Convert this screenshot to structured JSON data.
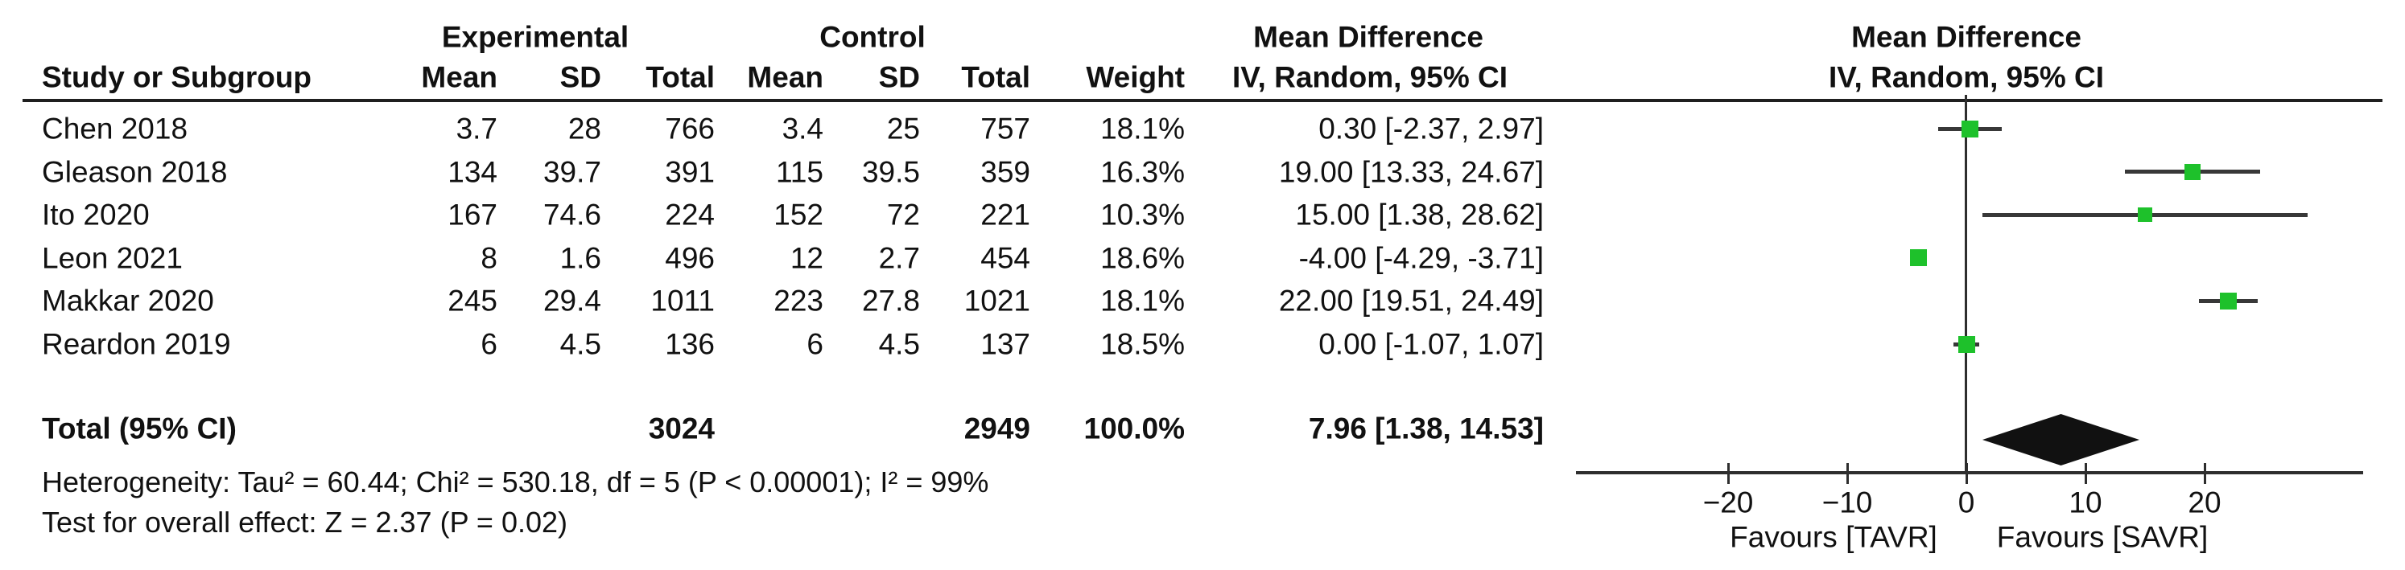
{
  "table": {
    "header": {
      "study": "Study or Subgroup",
      "experimental": "Experimental",
      "control": "Control",
      "mean": "Mean",
      "sd": "SD",
      "total": "Total",
      "weight": "Weight",
      "effect_line1": "Mean Difference",
      "effect_line2": "IV, Random, 95% CI"
    },
    "rows": [
      {
        "study": "Chen 2018",
        "exp_mean": "3.7",
        "exp_sd": "28",
        "exp_total": "766",
        "ctrl_mean": "3.4",
        "ctrl_sd": "25",
        "ctrl_total": "757",
        "weight": "18.1%",
        "ci_text": "0.30 [-2.37, 2.97]"
      },
      {
        "study": "Gleason 2018",
        "exp_mean": "134",
        "exp_sd": "39.7",
        "exp_total": "391",
        "ctrl_mean": "115",
        "ctrl_sd": "39.5",
        "ctrl_total": "359",
        "weight": "16.3%",
        "ci_text": "19.00 [13.33, 24.67]"
      },
      {
        "study": "Ito 2020",
        "exp_mean": "167",
        "exp_sd": "74.6",
        "exp_total": "224",
        "ctrl_mean": "152",
        "ctrl_sd": "72",
        "ctrl_total": "221",
        "weight": "10.3%",
        "ci_text": "15.00 [1.38, 28.62]"
      },
      {
        "study": "Leon 2021",
        "exp_mean": "8",
        "exp_sd": "1.6",
        "exp_total": "496",
        "ctrl_mean": "12",
        "ctrl_sd": "2.7",
        "ctrl_total": "454",
        "weight": "18.6%",
        "ci_text": "-4.00 [-4.29, -3.71]"
      },
      {
        "study": "Makkar 2020",
        "exp_mean": "245",
        "exp_sd": "29.4",
        "exp_total": "1011",
        "ctrl_mean": "223",
        "ctrl_sd": "27.8",
        "ctrl_total": "1021",
        "weight": "18.1%",
        "ci_text": "22.00 [19.51, 24.49]"
      },
      {
        "study": "Reardon 2019",
        "exp_mean": "6",
        "exp_sd": "4.5",
        "exp_total": "136",
        "ctrl_mean": "6",
        "ctrl_sd": "4.5",
        "ctrl_total": "137",
        "weight": "18.5%",
        "ci_text": "0.00 [-1.07, 1.07]"
      }
    ],
    "total_row": {
      "label": "Total (95% CI)",
      "exp_total": "3024",
      "ctrl_total": "2949",
      "weight": "100.0%",
      "ci_text": "7.96 [1.38, 14.53]"
    },
    "heterogeneity": "Heterogeneity: Tau² = 60.44; Chi² = 530.18, df = 5 (P < 0.00001); I² = 99%",
    "overall_effect": "Test for overall effect: Z = 2.37 (P = 0.02)"
  },
  "plot": {
    "header_line1": "Mean Difference",
    "header_line2": "IV, Random, 95% CI",
    "ticks": [
      {
        "value": -20,
        "label": "−20"
      },
      {
        "value": -10,
        "label": "−10"
      },
      {
        "value": 0,
        "label": "0"
      },
      {
        "value": 10,
        "label": "10"
      },
      {
        "value": 20,
        "label": "20"
      }
    ],
    "favours_left": "Favours [TAVR]",
    "favours_right": "Favours [SAVR]",
    "colors": {
      "marker": "#1ec12b",
      "ci_line": "#383838",
      "diamond": "#111111",
      "axis": "#2e2e2e"
    }
  },
  "chart_data": {
    "type": "forest",
    "effect_measure": "Mean Difference, IV, Random, 95% CI",
    "studies": [
      {
        "name": "Chen 2018",
        "md": 0.3,
        "ci_low": -2.37,
        "ci_high": 2.97,
        "weight_pct": 18.1,
        "exp": {
          "mean": 3.7,
          "sd": 28,
          "total": 766
        },
        "ctrl": {
          "mean": 3.4,
          "sd": 25,
          "total": 757
        }
      },
      {
        "name": "Gleason 2018",
        "md": 19.0,
        "ci_low": 13.33,
        "ci_high": 24.67,
        "weight_pct": 16.3,
        "exp": {
          "mean": 134,
          "sd": 39.7,
          "total": 391
        },
        "ctrl": {
          "mean": 115,
          "sd": 39.5,
          "total": 359
        }
      },
      {
        "name": "Ito 2020",
        "md": 15.0,
        "ci_low": 1.38,
        "ci_high": 28.62,
        "weight_pct": 10.3,
        "exp": {
          "mean": 167,
          "sd": 74.6,
          "total": 224
        },
        "ctrl": {
          "mean": 152,
          "sd": 72,
          "total": 221
        }
      },
      {
        "name": "Leon 2021",
        "md": -4.0,
        "ci_low": -4.29,
        "ci_high": -3.71,
        "weight_pct": 18.6,
        "exp": {
          "mean": 8,
          "sd": 1.6,
          "total": 496
        },
        "ctrl": {
          "mean": 12,
          "sd": 2.7,
          "total": 454
        }
      },
      {
        "name": "Makkar 2020",
        "md": 22.0,
        "ci_low": 19.51,
        "ci_high": 24.49,
        "weight_pct": 18.1,
        "exp": {
          "mean": 245,
          "sd": 29.4,
          "total": 1011
        },
        "ctrl": {
          "mean": 223,
          "sd": 27.8,
          "total": 1021
        }
      },
      {
        "name": "Reardon 2019",
        "md": 0.0,
        "ci_low": -1.07,
        "ci_high": 1.07,
        "weight_pct": 18.5,
        "exp": {
          "mean": 6,
          "sd": 4.5,
          "total": 136
        },
        "ctrl": {
          "mean": 6,
          "sd": 4.5,
          "total": 137
        }
      }
    ],
    "overall": {
      "md": 7.96,
      "ci_low": 1.38,
      "ci_high": 14.53,
      "exp_total": 3024,
      "ctrl_total": 2949,
      "weight_pct": 100.0
    },
    "heterogeneity": {
      "tau2": 60.44,
      "chi2": 530.18,
      "df": 5,
      "p": "< 0.00001",
      "i2_pct": 99
    },
    "overall_test": {
      "z": 2.37,
      "p": 0.02
    },
    "axis": {
      "ticks": [
        -20,
        -10,
        0,
        10,
        20
      ],
      "xmin": -32.8,
      "xmax": 33.3,
      "left_label": "Favours [TAVR]",
      "right_label": "Favours [SAVR]"
    }
  }
}
